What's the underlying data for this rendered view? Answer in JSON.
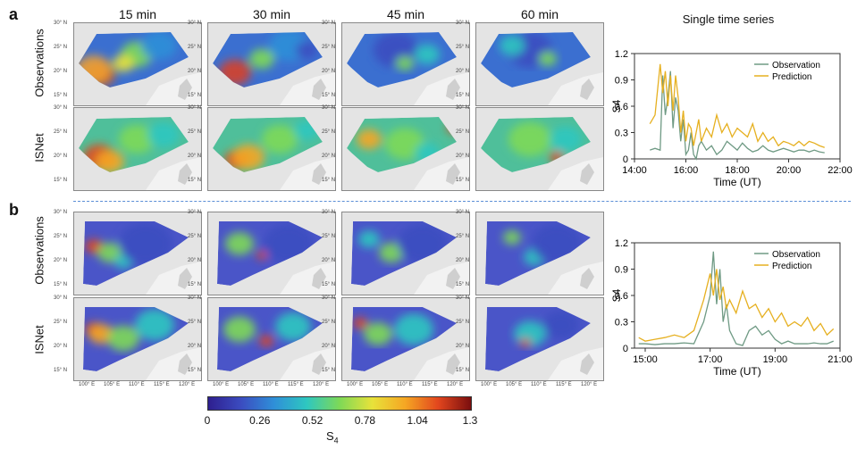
{
  "figure": {
    "panel_labels": [
      "a",
      "b"
    ],
    "column_titles": [
      "15 min",
      "30 min",
      "45 min",
      "60 min"
    ],
    "row_titles": [
      "Observations",
      "ISNet"
    ],
    "lat_ticks": [
      "30° N",
      "25° N",
      "20° N",
      "15° N"
    ],
    "lon_ticks": [
      "100° E",
      "105° E",
      "110° E",
      "115° E",
      "120° E"
    ],
    "right_title": "Single time series"
  },
  "colorbar": {
    "label": "S",
    "label_sub": "4",
    "ticks": [
      "0",
      "0.26",
      "0.52",
      "0.78",
      "1.04",
      "1.3"
    ],
    "colors": [
      "#2e1f8f",
      "#3b4cc0",
      "#2f8fd8",
      "#2ec7c0",
      "#7ed957",
      "#e8e23a",
      "#f5a623",
      "#e2461e",
      "#7a0e0e"
    ]
  },
  "colors": {
    "observation": "#6f9a84",
    "prediction": "#e6b020"
  },
  "chart_data": [
    {
      "type": "line",
      "xlabel": "Time (UT)",
      "ylabel": "S4",
      "xlim": [
        14.0,
        22.0
      ],
      "ylim": [
        0,
        1.2
      ],
      "xticks": [
        "14:00",
        "16:00",
        "18:00",
        "20:00",
        "22:00"
      ],
      "yticks": [
        "0",
        "0.3",
        "0.6",
        "0.9",
        "1.2"
      ],
      "legend": "top-right",
      "series": [
        {
          "name": "Observation",
          "x": [
            14.6,
            14.8,
            15.0,
            15.1,
            15.2,
            15.3,
            15.4,
            15.5,
            15.6,
            15.7,
            15.8,
            15.9,
            16.0,
            16.1,
            16.2,
            16.3,
            16.4,
            16.5,
            16.6,
            16.8,
            17.0,
            17.2,
            17.4,
            17.6,
            17.8,
            18.0,
            18.2,
            18.4,
            18.6,
            18.8,
            19.0,
            19.2,
            19.4,
            19.6,
            19.8,
            20.0,
            20.2,
            20.4,
            20.6,
            20.8,
            21.0,
            21.2,
            21.4
          ],
          "y": [
            0.1,
            0.12,
            0.1,
            0.95,
            0.5,
            0.7,
            1.0,
            0.35,
            0.7,
            0.55,
            0.2,
            0.45,
            0.05,
            0.1,
            0.3,
            0.05,
            0.0,
            0.15,
            0.2,
            0.1,
            0.15,
            0.05,
            0.1,
            0.2,
            0.15,
            0.1,
            0.18,
            0.12,
            0.08,
            0.1,
            0.15,
            0.1,
            0.08,
            0.1,
            0.12,
            0.1,
            0.08,
            0.1,
            0.1,
            0.08,
            0.1,
            0.08,
            0.07
          ]
        },
        {
          "name": "Prediction",
          "x": [
            14.6,
            14.8,
            15.0,
            15.1,
            15.2,
            15.3,
            15.4,
            15.5,
            15.6,
            15.7,
            15.8,
            15.9,
            16.0,
            16.1,
            16.2,
            16.3,
            16.4,
            16.5,
            16.6,
            16.8,
            17.0,
            17.2,
            17.4,
            17.6,
            17.8,
            18.0,
            18.2,
            18.4,
            18.6,
            18.8,
            19.0,
            19.2,
            19.4,
            19.6,
            19.8,
            20.0,
            20.2,
            20.4,
            20.6,
            20.8,
            21.0,
            21.2,
            21.4
          ],
          "y": [
            0.4,
            0.5,
            1.08,
            0.75,
            1.0,
            0.6,
            0.95,
            0.55,
            0.95,
            0.7,
            0.3,
            0.55,
            0.2,
            0.4,
            0.35,
            0.15,
            0.3,
            0.45,
            0.2,
            0.35,
            0.25,
            0.5,
            0.3,
            0.4,
            0.25,
            0.35,
            0.3,
            0.25,
            0.4,
            0.2,
            0.3,
            0.2,
            0.25,
            0.15,
            0.2,
            0.18,
            0.15,
            0.2,
            0.15,
            0.2,
            0.18,
            0.15,
            0.13
          ]
        }
      ]
    },
    {
      "type": "line",
      "xlabel": "Time (UT)",
      "ylabel": "S4",
      "xlim": [
        14.67,
        21.0
      ],
      "ylim": [
        0,
        1.2
      ],
      "xticks": [
        "15:00",
        "17:00",
        "19:00",
        "21:00"
      ],
      "yticks": [
        "0",
        "0.3",
        "0.6",
        "0.9",
        "1.2"
      ],
      "legend": "top-right",
      "series": [
        {
          "name": "Observation",
          "x": [
            14.8,
            15.0,
            15.3,
            15.6,
            15.9,
            16.2,
            16.5,
            16.8,
            17.0,
            17.1,
            17.2,
            17.3,
            17.4,
            17.5,
            17.6,
            17.8,
            18.0,
            18.2,
            18.4,
            18.6,
            18.8,
            19.0,
            19.2,
            19.4,
            19.6,
            19.8,
            20.0,
            20.2,
            20.4,
            20.6,
            20.8
          ],
          "y": [
            0.05,
            0.05,
            0.04,
            0.05,
            0.05,
            0.06,
            0.05,
            0.3,
            0.6,
            1.1,
            0.5,
            0.9,
            0.3,
            0.5,
            0.2,
            0.05,
            0.03,
            0.2,
            0.25,
            0.15,
            0.2,
            0.1,
            0.05,
            0.08,
            0.05,
            0.05,
            0.05,
            0.06,
            0.05,
            0.05,
            0.08
          ]
        },
        {
          "name": "Prediction",
          "x": [
            14.8,
            15.0,
            15.3,
            15.6,
            15.9,
            16.2,
            16.5,
            16.8,
            17.0,
            17.1,
            17.2,
            17.3,
            17.4,
            17.5,
            17.6,
            17.8,
            18.0,
            18.2,
            18.4,
            18.6,
            18.8,
            19.0,
            19.2,
            19.4,
            19.6,
            19.8,
            20.0,
            20.2,
            20.4,
            20.6,
            20.8
          ],
          "y": [
            0.12,
            0.08,
            0.1,
            0.12,
            0.15,
            0.12,
            0.2,
            0.55,
            0.85,
            0.6,
            0.9,
            0.55,
            0.7,
            0.45,
            0.55,
            0.4,
            0.65,
            0.45,
            0.5,
            0.35,
            0.45,
            0.3,
            0.4,
            0.25,
            0.3,
            0.25,
            0.35,
            0.2,
            0.28,
            0.15,
            0.22
          ]
        }
      ]
    }
  ]
}
